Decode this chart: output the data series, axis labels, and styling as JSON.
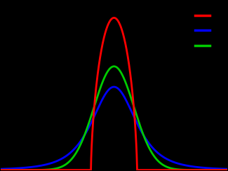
{
  "background_color": "#000000",
  "axes_bg_color": "#000000",
  "curves": [
    {
      "color": "#ff0000",
      "q": -0.5,
      "beta": 1.0
    },
    {
      "color": "#0000ff",
      "q": 1.5,
      "beta": 1.0
    },
    {
      "color": "#00cc00",
      "q": 1.0,
      "beta": 1.0
    }
  ],
  "xlim": [
    -4,
    4
  ],
  "ylim": [
    0,
    0.92
  ],
  "linewidth": 2.0,
  "figsize": [
    3.25,
    2.44
  ],
  "dpi": 100
}
